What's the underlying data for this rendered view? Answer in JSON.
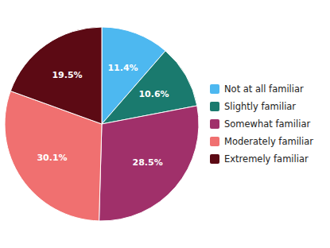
{
  "chart_data": {
    "type": "pie",
    "categories": [
      "Not at all familiar",
      "Slightly familiar",
      "Somewhat familiar",
      "Moderately familiar",
      "Extremely familiar"
    ],
    "values": [
      11.4,
      10.6,
      28.5,
      30.1,
      19.5
    ],
    "value_labels": [
      "11.4%",
      "10.6%",
      "28.5%",
      "30.1%",
      "19.5%"
    ],
    "colors": [
      "#4db8f0",
      "#1a7a6e",
      "#a0306a",
      "#f07070",
      "#5c0a14"
    ],
    "data_labels": true,
    "legend": "right"
  }
}
